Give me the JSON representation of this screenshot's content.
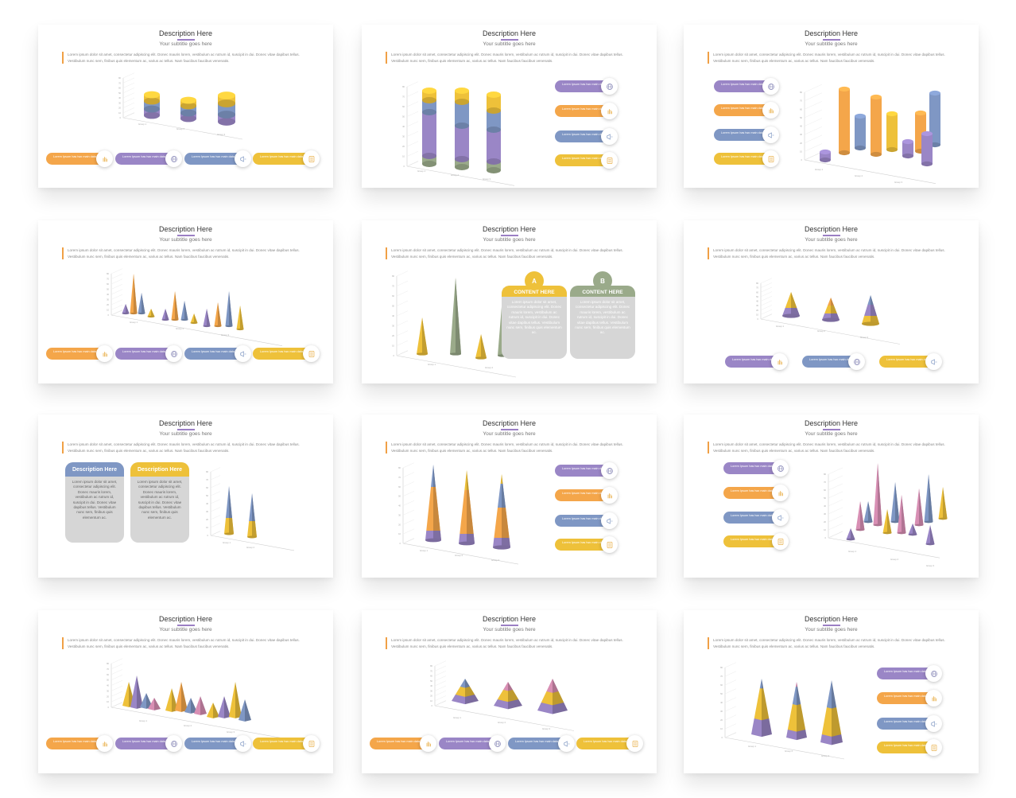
{
  "common": {
    "title": "Description Here",
    "subtitle": "Your subtitle goes here",
    "description": "Lorem ipsum dolor sit amet, consectetur adipiscing elit. Donec mauris lorem, vestibulum ac rutrum id, suscipit in dui. Donec vitae dapibus tellus. Vestibulum nunc sem, finibus quis elementum ac, varius ac tellus. Nam faucibus faucibus venenatis.",
    "pill_text": "Lorem Ipsum has two main data statistical",
    "content_here": "CONTENT HERE",
    "box_desc_title": "Description Here",
    "box_body": "Lorem ipsum dolor sit amet, consectetur adipiscing elit. Donec mauris lorem, vestibulum ac rutrum id, suscipit in dui. Donec vitae dapibus tellus. Vestibulum nunc sem, finibus quis elementum ac.",
    "box_a": "A",
    "box_b": "B"
  },
  "colors": {
    "orange": "#f4a64a",
    "purple": "#9a86c6",
    "blue": "#7f97c4",
    "yellow": "#eec13a",
    "green": "#9aaa8a",
    "pink": "#d88fb4",
    "accent": "#9b7fc4"
  },
  "icons": [
    "hand-icon",
    "globe-icon",
    "megaphone-icon",
    "list-icon"
  ]
}
